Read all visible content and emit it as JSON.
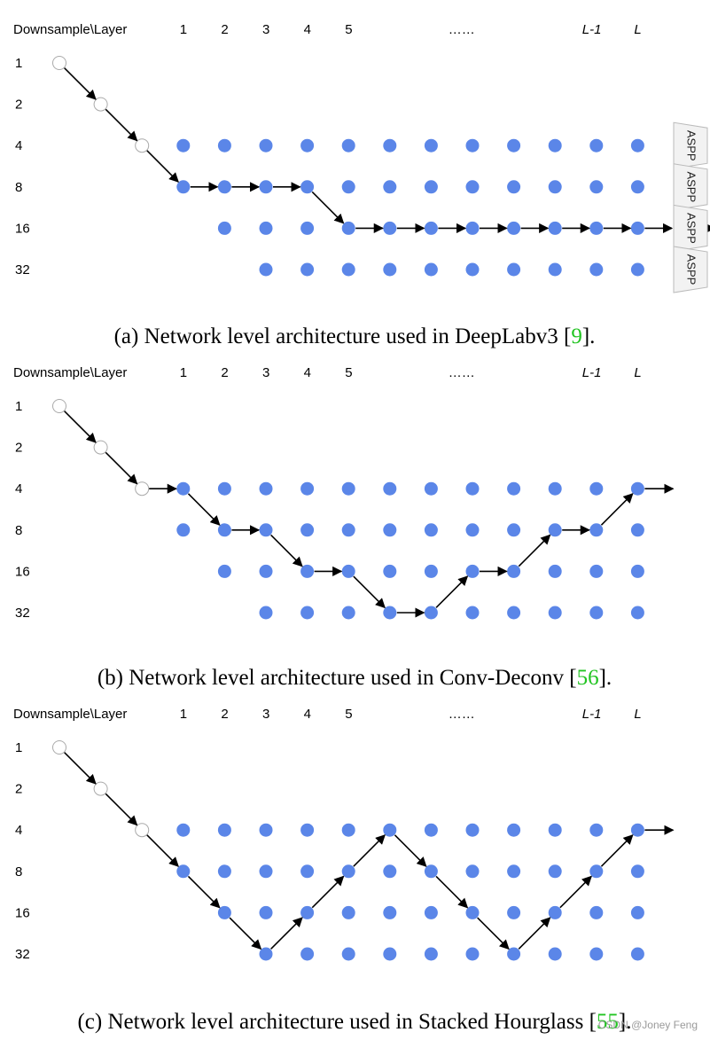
{
  "header": {
    "axis_label": "Downsample\\Layer",
    "layers": [
      "1",
      "2",
      "3",
      "4",
      "5",
      "……",
      "L-1",
      "L"
    ]
  },
  "downsample_levels": [
    "1",
    "2",
    "4",
    "8",
    "16",
    "32"
  ],
  "panels": [
    {
      "caption_prefix": "(a) Network level architecture used in DeepLabv3 [",
      "caption_ref": "9",
      "caption_suffix": "].",
      "aspp_label": "ASPP",
      "path": [
        [
          0,
          0
        ],
        [
          1,
          1
        ],
        [
          2,
          2
        ],
        [
          3,
          3
        ],
        [
          4,
          3
        ],
        [
          5,
          3
        ],
        [
          6,
          3
        ],
        [
          7,
          4
        ],
        [
          8,
          4
        ],
        [
          9,
          4
        ],
        [
          10,
          4
        ],
        [
          11,
          4
        ],
        [
          12,
          4
        ],
        [
          13,
          4
        ],
        [
          14,
          4
        ],
        [
          15,
          4
        ]
      ]
    },
    {
      "caption_prefix": "(b) Network level architecture used in Conv-Deconv [",
      "caption_ref": "56",
      "caption_suffix": "].",
      "path": [
        [
          0,
          0
        ],
        [
          1,
          1
        ],
        [
          2,
          2
        ],
        [
          3,
          2
        ],
        [
          4,
          3
        ],
        [
          5,
          3
        ],
        [
          6,
          4
        ],
        [
          7,
          4
        ],
        [
          8,
          5
        ],
        [
          9,
          5
        ],
        [
          10,
          4
        ],
        [
          11,
          4
        ],
        [
          12,
          3
        ],
        [
          13,
          3
        ],
        [
          14,
          2
        ]
      ]
    },
    {
      "caption_prefix": "(c) Network level architecture used in Stacked Hourglass [",
      "caption_ref": "55",
      "caption_suffix": "].",
      "path": [
        [
          0,
          0
        ],
        [
          1,
          1
        ],
        [
          2,
          2
        ],
        [
          3,
          3
        ],
        [
          4,
          4
        ],
        [
          5,
          5
        ],
        [
          6,
          4
        ],
        [
          7,
          3
        ],
        [
          8,
          2
        ],
        [
          9,
          3
        ],
        [
          10,
          4
        ],
        [
          11,
          5
        ],
        [
          12,
          4
        ],
        [
          13,
          3
        ],
        [
          14,
          2
        ]
      ]
    }
  ],
  "watermark": "CSDN @Joney Feng",
  "colors": {
    "node": "#5b86e8",
    "edge": "#000000",
    "empty": "#ffffff"
  }
}
